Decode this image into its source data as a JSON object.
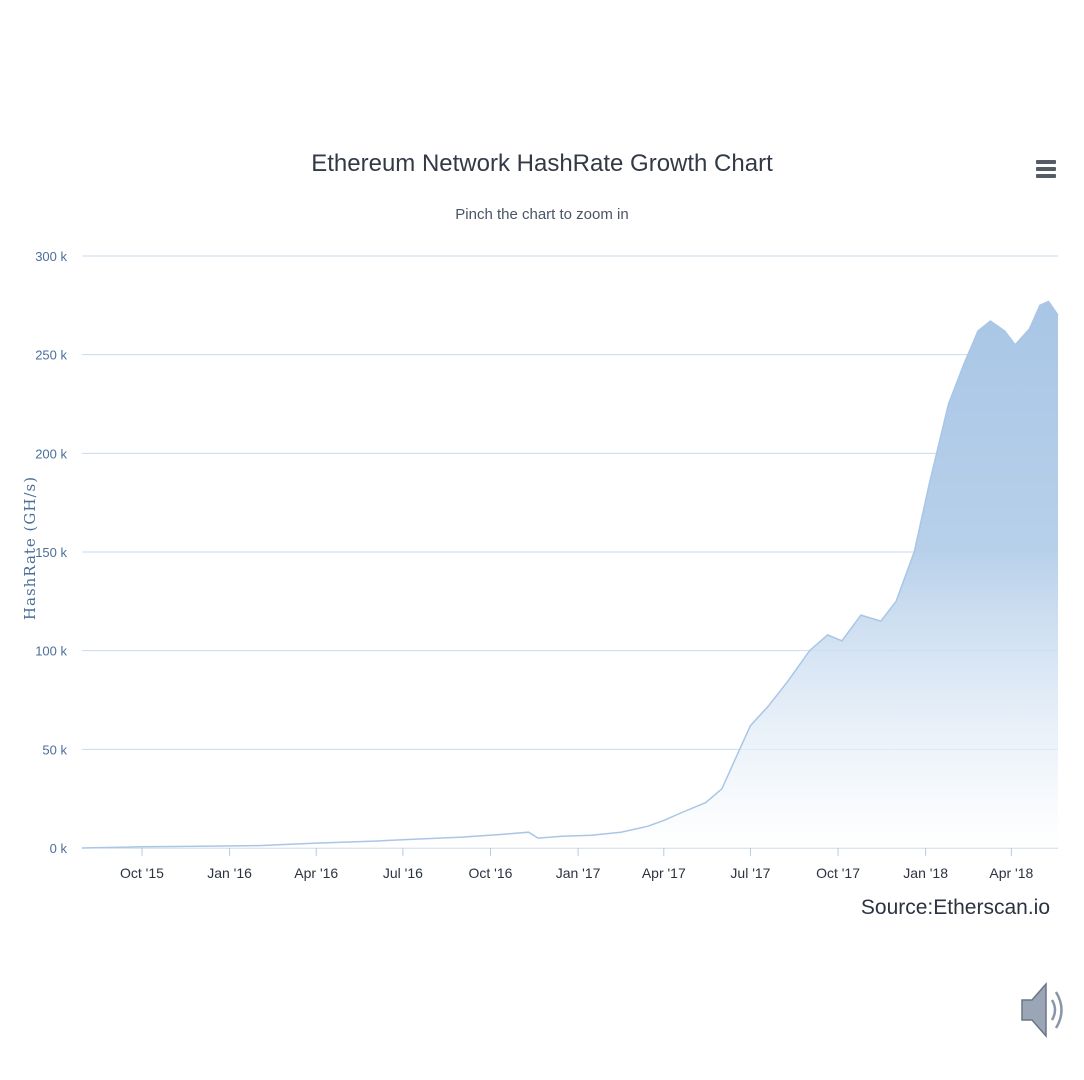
{
  "chart_data": {
    "type": "area",
    "title": "Ethereum Network HashRate Growth Chart",
    "subtitle": "Pinch the chart to zoom in",
    "ylabel": "HashRate (GH/s)",
    "xlabel": "",
    "ylim": [
      0,
      300000
    ],
    "yticks": [
      "0 k",
      "50 k",
      "100 k",
      "150 k",
      "200 k",
      "250 k",
      "300 k"
    ],
    "xticks": [
      "Oct '15",
      "Jan '16",
      "Apr '16",
      "Jul '16",
      "Oct '16",
      "Jan '17",
      "Apr '17",
      "Jul '17",
      "Oct '17",
      "Jan '18",
      "Apr '18"
    ],
    "grid": true,
    "color": "#a9c6e6",
    "series": [
      {
        "x": [
          "2015-07-30",
          "2015-09-01",
          "2015-10-01",
          "2015-12-01",
          "2016-02-01",
          "2016-04-01",
          "2016-06-01",
          "2016-07-15",
          "2016-09-01",
          "2016-10-15",
          "2016-11-10",
          "2016-11-20",
          "2016-12-15",
          "2017-01-15",
          "2017-02-15",
          "2017-03-15",
          "2017-04-01",
          "2017-04-20",
          "2017-05-15",
          "2017-06-01",
          "2017-06-15",
          "2017-07-01",
          "2017-07-20",
          "2017-08-10",
          "2017-09-01",
          "2017-09-20",
          "2017-10-05",
          "2017-10-25",
          "2017-11-15",
          "2017-12-01",
          "2017-12-20",
          "2018-01-05",
          "2018-01-25",
          "2018-02-10",
          "2018-02-25",
          "2018-03-10",
          "2018-03-25",
          "2018-04-05",
          "2018-04-20",
          "2018-05-01",
          "2018-05-10",
          "2018-05-20"
        ],
        "values": [
          0,
          300,
          600,
          900,
          1200,
          2500,
          3500,
          4500,
          5500,
          7000,
          8000,
          5000,
          6000,
          6500,
          8000,
          11000,
          14000,
          18000,
          23000,
          30000,
          45000,
          62000,
          72000,
          85000,
          100000,
          108000,
          105000,
          118000,
          115000,
          125000,
          150000,
          185000,
          225000,
          245000,
          262000,
          267000,
          262000,
          255000,
          263000,
          275000,
          277000,
          270000
        ]
      }
    ]
  },
  "source_label": "Source:Etherscan.io",
  "icons": {
    "menu": "hamburger-menu-icon",
    "sound": "speaker-icon"
  }
}
